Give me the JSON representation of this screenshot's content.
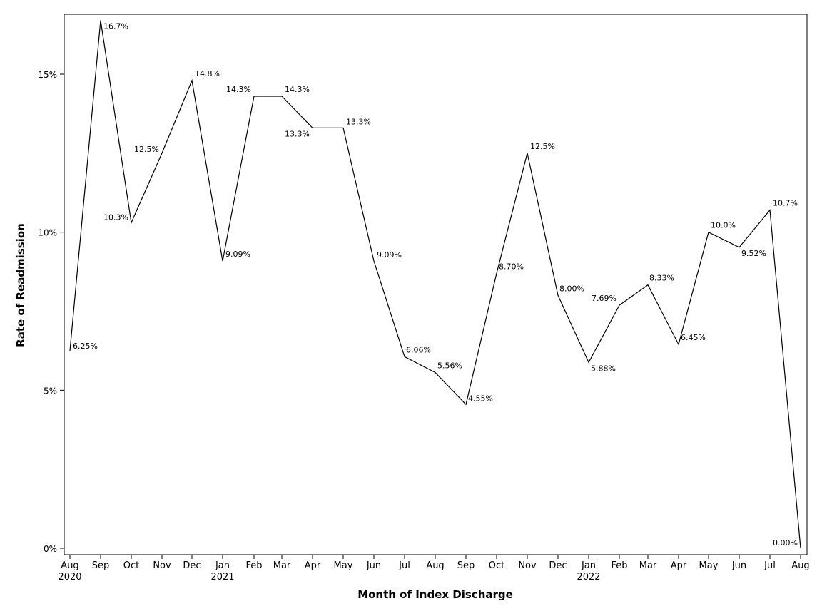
{
  "chart_data": {
    "type": "line",
    "title": "",
    "xlabel": "Month of Index Discharge",
    "ylabel": "Rate of Readmission",
    "ylim": [
      0,
      16.7
    ],
    "y_ticks": [
      0,
      5,
      10,
      15
    ],
    "y_tick_labels": [
      "0%",
      "5%",
      "10%",
      "15%"
    ],
    "grid": false,
    "legend": "none",
    "line_color": "#000000",
    "x": [
      "2020-08",
      "2020-09",
      "2020-10",
      "2020-11",
      "2020-12",
      "2021-01",
      "2021-02",
      "2021-03",
      "2021-04",
      "2021-05",
      "2021-06",
      "2021-07",
      "2021-08",
      "2021-09",
      "2021-10",
      "2021-11",
      "2021-12",
      "2022-01",
      "2022-02",
      "2022-03",
      "2022-04",
      "2022-05",
      "2022-06",
      "2022-07",
      "2022-08"
    ],
    "x_tick_labels": [
      "Aug",
      "Sep",
      "Oct",
      "Nov",
      "Dec",
      "Jan",
      "Feb",
      "Mar",
      "Apr",
      "May",
      "Jun",
      "Jul",
      "Aug",
      "Sep",
      "Oct",
      "Nov",
      "Dec",
      "Jan",
      "Feb",
      "Mar",
      "Apr",
      "May",
      "Jun",
      "Jul",
      "Aug"
    ],
    "x_tick_sublabels": [
      "2020",
      "",
      "",
      "",
      "",
      "2021",
      "",
      "",
      "",
      "",
      "",
      "",
      "",
      "",
      "",
      "",
      "",
      "2022",
      "",
      "",
      "",
      "",
      "",
      "",
      ""
    ],
    "series": [
      {
        "values": [
          6.25,
          16.7,
          10.3,
          12.5,
          14.8,
          9.09,
          14.3,
          14.3,
          13.3,
          13.3,
          9.09,
          6.06,
          5.56,
          4.55,
          8.7,
          12.5,
          8.0,
          5.88,
          7.69,
          8.33,
          6.45,
          10.0,
          9.52,
          10.7,
          0.0
        ],
        "data_labels": [
          "6.25%",
          "16.7%",
          "10.3%",
          "12.5%",
          "14.8%",
          "9.09%",
          "14.3%",
          "14.3%",
          "13.3%",
          "13.3%",
          "9.09%",
          "6.06%",
          "5.56%",
          "4.55%",
          "8.70%",
          "12.5%",
          "8.00%",
          "5.88%",
          "7.69%",
          "8.33%",
          "6.45%",
          "10.0%",
          "9.52%",
          "10.7%",
          "0.00%"
        ]
      }
    ]
  }
}
